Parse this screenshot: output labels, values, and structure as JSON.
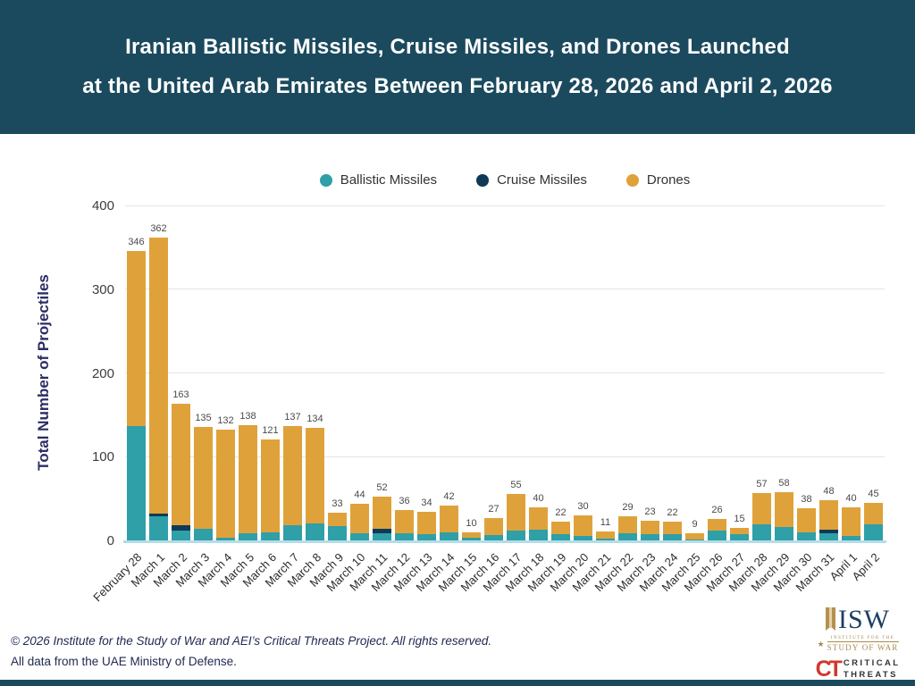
{
  "header": {
    "title_line1": "Iranian Ballistic Missiles, Cruise Missiles, and Drones Launched",
    "title_line2": "at the United Arab Emirates Between February 28, 2026 and April 2, 2026"
  },
  "colors": {
    "banner": "#1b4a5e",
    "ballistic": "#2f9fa8",
    "cruise": "#0e3a57",
    "drones": "#dfa23a",
    "baseline": "#b5dde8",
    "axis_title": "#2b2d63",
    "isw_navy": "#1d3f63",
    "isw_gold": "#a98b4f",
    "ct_red": "#d0392e"
  },
  "chart_data": {
    "type": "bar",
    "stacked": true,
    "title": "Iranian Ballistic Missiles, Cruise Missiles, and Drones Launched at the United Arab Emirates Between February 28, 2026 and April 2, 2026",
    "xlabel": "",
    "ylabel": "Total Number of Projectiles",
    "ylim": [
      0,
      400
    ],
    "yticks": [
      0,
      100,
      200,
      300,
      400
    ],
    "grid": true,
    "legend_position": "top",
    "categories": [
      "February 28",
      "March 1",
      "March 2",
      "March 3",
      "March 4",
      "March 5",
      "March 6",
      "March 7",
      "March 8",
      "March 9",
      "March 10",
      "March 11",
      "March 12",
      "March 13",
      "March 14",
      "March 15",
      "March 16",
      "March 17",
      "March 18",
      "March 19",
      "March 20",
      "March 21",
      "March 22",
      "March 23",
      "March 24",
      "March 25",
      "March 26",
      "March 27",
      "March 28",
      "March 29",
      "March 30",
      "March 31",
      "April 1",
      "April 2"
    ],
    "series": [
      {
        "name": "Ballistic Missiles",
        "color": "#2f9fa8",
        "values": [
          137,
          29,
          12,
          14,
          3,
          9,
          10,
          18,
          20,
          17,
          9,
          9,
          9,
          8,
          10,
          3,
          6,
          12,
          13,
          8,
          5,
          2,
          9,
          8,
          7,
          1,
          12,
          7,
          19,
          16,
          10,
          9,
          5,
          19
        ]
      },
      {
        "name": "Cruise Missiles",
        "color": "#0e3a57",
        "values": [
          0,
          3,
          6,
          0,
          0,
          0,
          0,
          0,
          0,
          0,
          0,
          5,
          0,
          0,
          0,
          0,
          0,
          0,
          0,
          0,
          0,
          0,
          0,
          0,
          0,
          0,
          0,
          0,
          0,
          0,
          0,
          4,
          0,
          0
        ]
      },
      {
        "name": "Drones",
        "color": "#dfa23a",
        "values": [
          209,
          330,
          145,
          121,
          129,
          129,
          111,
          119,
          114,
          16,
          35,
          38,
          27,
          26,
          32,
          7,
          21,
          43,
          27,
          14,
          25,
          9,
          20,
          15,
          15,
          8,
          14,
          8,
          38,
          42,
          28,
          35,
          35,
          26
        ]
      }
    ],
    "totals": [
      346,
      362,
      163,
      135,
      132,
      138,
      121,
      137,
      134,
      33,
      44,
      52,
      36,
      34,
      42,
      10,
      27,
      55,
      40,
      22,
      30,
      11,
      29,
      23,
      22,
      9,
      26,
      15,
      57,
      58,
      38,
      48,
      40,
      45
    ]
  },
  "footer": {
    "copyright": "© 2026 Institute for the Study of War and AEI’s Critical Threats Project. All rights reserved.",
    "data_source": "All data from the UAE Ministry of Defense."
  },
  "logos": {
    "isw": {
      "acronym": "ISW",
      "subtitle_line1": "INSTITUTE FOR THE",
      "subtitle_line2": "STUDY OF WAR"
    },
    "ct": {
      "monogram": "CT",
      "line1": "CRITICAL",
      "line2": "THREATS"
    }
  }
}
